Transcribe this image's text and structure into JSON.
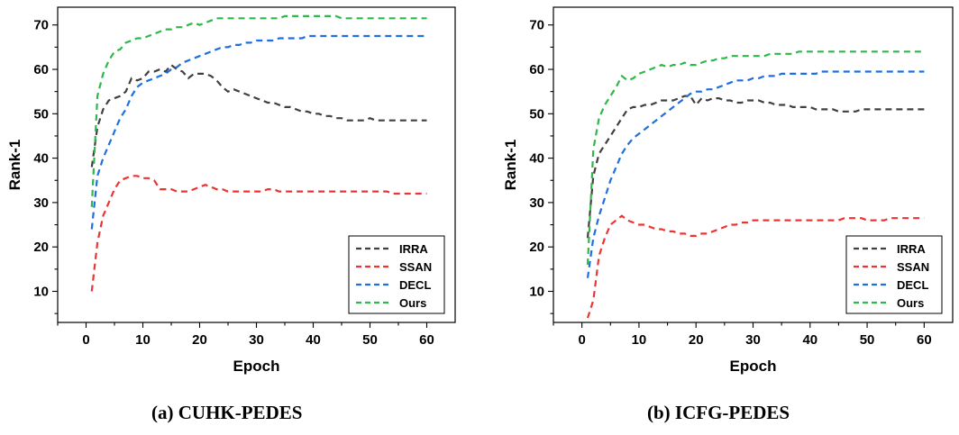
{
  "captions": [
    "(a) CUHK-PEDES",
    "(b) ICFG-PEDES"
  ],
  "chart_data": [
    {
      "type": "line",
      "xlabel": "Epoch",
      "ylabel": "Rank-1",
      "xlim": [
        -5,
        65
      ],
      "ylim": [
        3,
        74
      ],
      "xticks": [
        0,
        10,
        20,
        30,
        40,
        50,
        60
      ],
      "yticks": [
        10,
        20,
        30,
        40,
        50,
        60,
        70
      ],
      "grid": false,
      "legend_position": "bottom-right",
      "series": [
        {
          "name": "IRRA",
          "color": "#404040",
          "x": [
            1,
            2,
            3,
            4,
            5,
            6,
            7,
            8,
            9,
            10,
            11,
            12,
            13,
            14,
            15,
            16,
            17,
            18,
            19,
            20,
            21,
            22,
            23,
            24,
            25,
            26,
            27,
            28,
            29,
            30,
            31,
            32,
            33,
            34,
            35,
            36,
            37,
            38,
            39,
            40,
            41,
            42,
            43,
            44,
            45,
            46,
            47,
            48,
            49,
            50,
            51,
            52,
            53,
            54,
            55,
            56,
            57,
            58,
            59,
            60
          ],
          "y": [
            38,
            47,
            51,
            53,
            53.5,
            54,
            55,
            58,
            57.5,
            58,
            59.5,
            59.5,
            60,
            59.5,
            61,
            60,
            59.5,
            58,
            59,
            59,
            59,
            58.5,
            57.5,
            56,
            55,
            55.5,
            55,
            54.5,
            54,
            53.5,
            53,
            52.5,
            52.5,
            52,
            51.5,
            51.5,
            51,
            50.5,
            50.5,
            50,
            50,
            49.5,
            49.5,
            49,
            49,
            48.5,
            48.5,
            48.5,
            48.5,
            49,
            48.5,
            48.5,
            48.5,
            48.5,
            48.5,
            48.5,
            48.5,
            48.5,
            48.5,
            48.5
          ]
        },
        {
          "name": "SSAN",
          "color": "#ee3333",
          "x": [
            1,
            2,
            3,
            4,
            5,
            6,
            7,
            8,
            9,
            10,
            11,
            12,
            13,
            14,
            15,
            16,
            17,
            18,
            19,
            20,
            21,
            22,
            23,
            24,
            25,
            26,
            27,
            28,
            29,
            30,
            31,
            32,
            33,
            34,
            35,
            36,
            37,
            38,
            39,
            40,
            41,
            42,
            43,
            44,
            45,
            46,
            47,
            48,
            49,
            50,
            51,
            52,
            53,
            54,
            55,
            56,
            57,
            58,
            59,
            60
          ],
          "y": [
            10,
            21,
            27,
            30,
            33,
            35,
            35.5,
            36,
            36,
            35.5,
            35.5,
            35,
            33,
            33,
            33,
            32.5,
            32.5,
            32.5,
            33,
            33.5,
            34,
            33.5,
            33,
            33,
            32.5,
            32.5,
            32.5,
            32.5,
            32.5,
            32.5,
            32.5,
            33,
            33,
            32.5,
            32.5,
            32.5,
            32.5,
            32.5,
            32.5,
            32.5,
            32.5,
            32.5,
            32.5,
            32.5,
            32.5,
            32.5,
            32.5,
            32.5,
            32.5,
            32.5,
            32.5,
            32.5,
            32.5,
            32,
            32,
            32,
            32,
            32,
            32,
            32
          ]
        },
        {
          "name": "DECL",
          "color": "#1f6fe0",
          "x": [
            1,
            2,
            3,
            4,
            5,
            6,
            7,
            8,
            9,
            10,
            11,
            12,
            13,
            14,
            15,
            16,
            17,
            18,
            19,
            20,
            21,
            22,
            23,
            24,
            25,
            26,
            27,
            28,
            29,
            30,
            31,
            32,
            33,
            34,
            35,
            36,
            37,
            38,
            39,
            40,
            41,
            42,
            43,
            44,
            45,
            46,
            47,
            48,
            49,
            50,
            51,
            52,
            53,
            54,
            55,
            56,
            57,
            58,
            59,
            60
          ],
          "y": [
            24,
            36,
            40,
            43,
            46,
            49,
            51,
            54,
            56,
            57,
            57.5,
            58,
            58.5,
            59,
            60,
            60.5,
            61.5,
            62,
            62.5,
            63,
            63.5,
            64,
            64.5,
            65,
            65,
            65.5,
            65.5,
            66,
            66,
            66.5,
            66.5,
            66.5,
            66.5,
            67,
            67,
            67,
            67,
            67,
            67.5,
            67.5,
            67.5,
            67.5,
            67.5,
            67.5,
            67.5,
            67.5,
            67.5,
            67.5,
            67.5,
            67.5,
            67.5,
            67.5,
            67.5,
            67.5,
            67.5,
            67.5,
            67.5,
            67.5,
            67.5,
            67.5
          ]
        },
        {
          "name": "Ours",
          "color": "#2fb84a",
          "x": [
            1,
            2,
            3,
            4,
            5,
            6,
            7,
            8,
            9,
            10,
            11,
            12,
            13,
            14,
            15,
            16,
            17,
            18,
            19,
            20,
            21,
            22,
            23,
            24,
            25,
            26,
            27,
            28,
            29,
            30,
            31,
            32,
            33,
            34,
            35,
            36,
            37,
            38,
            39,
            40,
            41,
            42,
            43,
            44,
            45,
            46,
            47,
            48,
            49,
            50,
            51,
            52,
            53,
            54,
            55,
            56,
            57,
            58,
            59,
            60
          ],
          "y": [
            29,
            54,
            59,
            62,
            64,
            64.5,
            66,
            66.5,
            67,
            67,
            67.5,
            68,
            68.5,
            69,
            69,
            69.5,
            69.5,
            70,
            70.5,
            70,
            70.5,
            71,
            71.5,
            71.5,
            71.5,
            71.5,
            71.5,
            71.5,
            71.5,
            71.5,
            71.5,
            71.5,
            71.5,
            71.5,
            72,
            72,
            72,
            72,
            72,
            72,
            72,
            72,
            72,
            72,
            71.5,
            71.5,
            71.5,
            71.5,
            71.5,
            71.5,
            71.5,
            71.5,
            71.5,
            71.5,
            71.5,
            71.5,
            71.5,
            71.5,
            71.5,
            71.5
          ]
        }
      ]
    },
    {
      "type": "line",
      "xlabel": "Epoch",
      "ylabel": "Rank-1",
      "xlim": [
        -5,
        65
      ],
      "ylim": [
        3,
        74
      ],
      "xticks": [
        0,
        10,
        20,
        30,
        40,
        50,
        60
      ],
      "yticks": [
        10,
        20,
        30,
        40,
        50,
        60,
        70
      ],
      "grid": false,
      "legend_position": "bottom-right",
      "series": [
        {
          "name": "IRRA",
          "color": "#404040",
          "x": [
            1,
            2,
            3,
            4,
            5,
            6,
            7,
            8,
            9,
            10,
            11,
            12,
            13,
            14,
            15,
            16,
            17,
            18,
            19,
            20,
            21,
            22,
            23,
            24,
            25,
            26,
            27,
            28,
            29,
            30,
            31,
            32,
            33,
            34,
            35,
            36,
            37,
            38,
            39,
            40,
            41,
            42,
            43,
            44,
            45,
            46,
            47,
            48,
            49,
            50,
            51,
            52,
            53,
            54,
            55,
            56,
            57,
            58,
            59,
            60
          ],
          "y": [
            22,
            36,
            41,
            43,
            45,
            47,
            49,
            51,
            51.5,
            51.5,
            52,
            52,
            52.5,
            53,
            53,
            53,
            53.5,
            54,
            54,
            52,
            53.5,
            53,
            53.5,
            53.5,
            53,
            53,
            52.5,
            52.5,
            53,
            53,
            53,
            52.5,
            52.5,
            52,
            52,
            52,
            51.5,
            51.5,
            51.5,
            51.5,
            51,
            51,
            51,
            51,
            50.5,
            50.5,
            50.5,
            50.5,
            51,
            51,
            51,
            51,
            51,
            51,
            51,
            51,
            51,
            51,
            51,
            51
          ]
        },
        {
          "name": "SSAN",
          "color": "#ee3333",
          "x": [
            1,
            2,
            3,
            4,
            5,
            6,
            7,
            8,
            9,
            10,
            11,
            12,
            13,
            14,
            15,
            16,
            17,
            18,
            19,
            20,
            21,
            22,
            23,
            24,
            25,
            26,
            27,
            28,
            29,
            30,
            31,
            32,
            33,
            34,
            35,
            36,
            37,
            38,
            39,
            40,
            41,
            42,
            43,
            44,
            45,
            46,
            47,
            48,
            49,
            50,
            51,
            52,
            53,
            54,
            55,
            56,
            57,
            58,
            59,
            60
          ],
          "y": [
            4,
            8,
            18,
            22,
            25,
            26,
            27,
            26,
            25.5,
            25,
            25,
            24.5,
            24,
            24,
            23.5,
            23.5,
            23,
            23,
            22.5,
            22.5,
            23,
            23,
            23.5,
            24,
            24.5,
            25,
            25,
            25.5,
            25.5,
            26,
            26,
            26,
            26,
            26,
            26,
            26,
            26,
            26,
            26,
            26,
            26,
            26,
            26,
            26,
            26,
            26.5,
            26.5,
            26.5,
            26.5,
            26,
            26,
            26,
            26,
            26.5,
            26.5,
            26.5,
            26.5,
            26.5,
            26.5,
            26.5
          ]
        },
        {
          "name": "DECL",
          "color": "#1f6fe0",
          "x": [
            1,
            2,
            3,
            4,
            5,
            6,
            7,
            8,
            9,
            10,
            11,
            12,
            13,
            14,
            15,
            16,
            17,
            18,
            19,
            20,
            21,
            22,
            23,
            24,
            25,
            26,
            27,
            28,
            29,
            30,
            31,
            32,
            33,
            34,
            35,
            36,
            37,
            38,
            39,
            40,
            41,
            42,
            43,
            44,
            45,
            46,
            47,
            48,
            49,
            50,
            51,
            52,
            53,
            54,
            55,
            56,
            57,
            58,
            59,
            60
          ],
          "y": [
            13,
            22,
            27,
            31,
            35,
            38,
            41,
            43,
            44.5,
            45.5,
            46.5,
            47.5,
            48.5,
            49.5,
            50.5,
            51.5,
            52.5,
            53.5,
            54.5,
            55,
            55,
            55.5,
            55.5,
            56,
            56.5,
            57,
            57.5,
            57.5,
            57.5,
            58,
            58,
            58.5,
            58.5,
            58.5,
            59,
            59,
            59,
            59,
            59,
            59,
            59,
            59.5,
            59.5,
            59.5,
            59.5,
            59.5,
            59.5,
            59.5,
            59.5,
            59.5,
            59.5,
            59.5,
            59.5,
            59.5,
            59.5,
            59.5,
            59.5,
            59.5,
            59.5,
            59.5
          ]
        },
        {
          "name": "Ours",
          "color": "#2fb84a",
          "x": [
            1,
            2,
            3,
            4,
            5,
            6,
            7,
            8,
            9,
            10,
            11,
            12,
            13,
            14,
            15,
            16,
            17,
            18,
            19,
            20,
            21,
            22,
            23,
            24,
            25,
            26,
            27,
            28,
            29,
            30,
            31,
            32,
            33,
            34,
            35,
            36,
            37,
            38,
            39,
            40,
            41,
            42,
            43,
            44,
            45,
            46,
            47,
            48,
            49,
            50,
            51,
            52,
            53,
            54,
            55,
            56,
            57,
            58,
            59,
            60
          ],
          "y": [
            16,
            42,
            49,
            52,
            54,
            56,
            58.5,
            57.5,
            58,
            59,
            59.5,
            60,
            60.5,
            61,
            60.5,
            61,
            61,
            61.5,
            61,
            61,
            61.5,
            62,
            62,
            62.5,
            62.5,
            63,
            63,
            63,
            63,
            63,
            63,
            63,
            63.5,
            63.5,
            63.5,
            63.5,
            63.5,
            64,
            64,
            64,
            64,
            64,
            64,
            64,
            64,
            64,
            64,
            64,
            64,
            64,
            64,
            64,
            64,
            64,
            64,
            64,
            64,
            64,
            64,
            64
          ]
        }
      ]
    }
  ]
}
